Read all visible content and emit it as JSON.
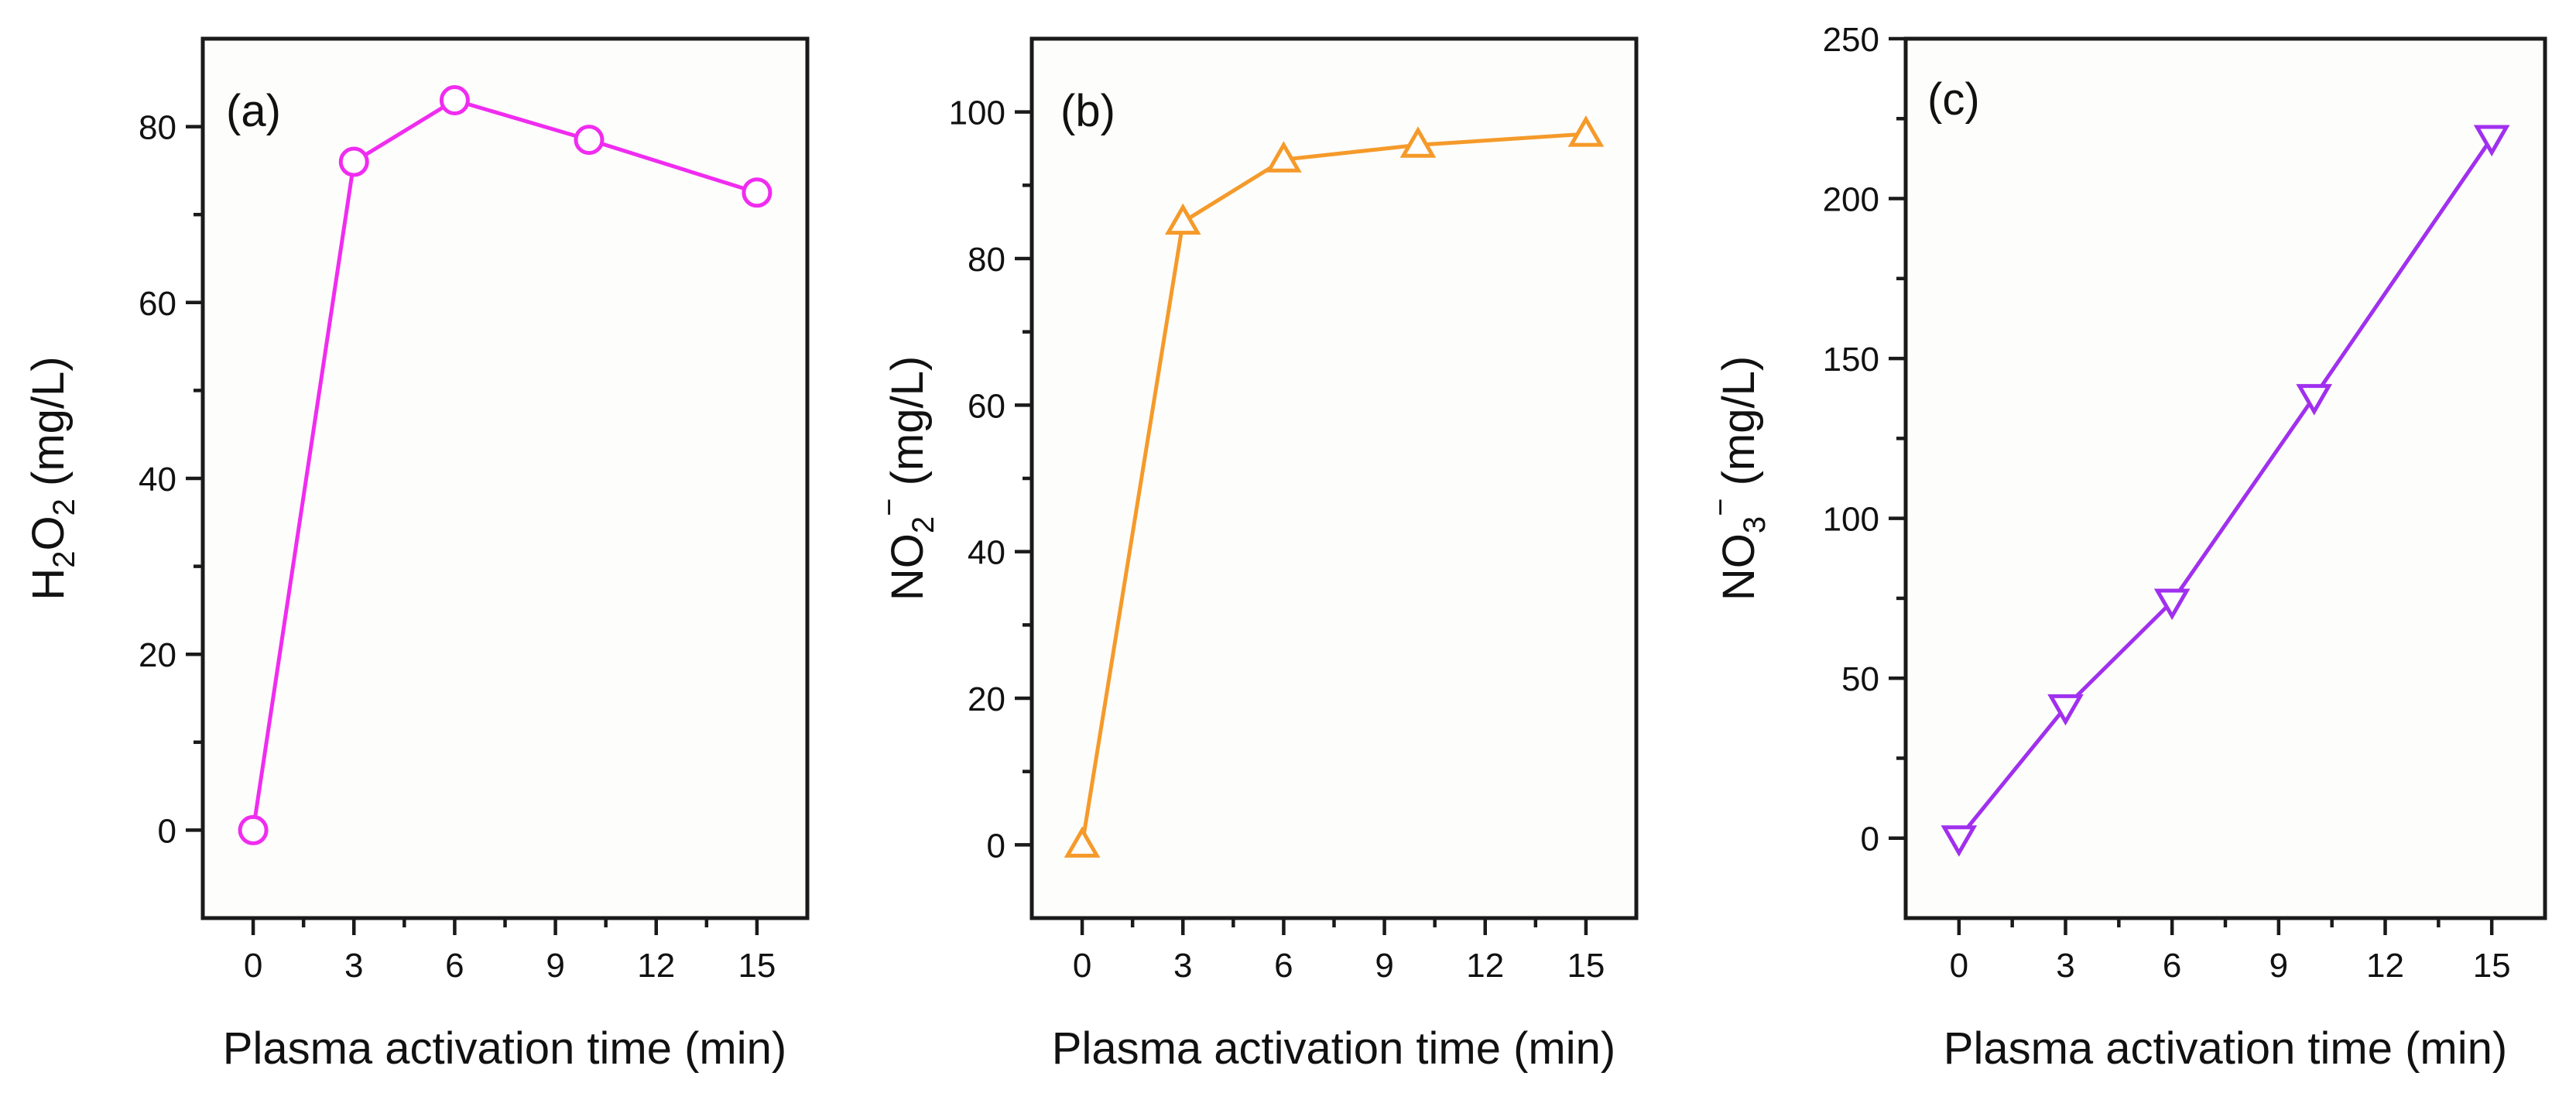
{
  "figure": {
    "panels": [
      "a",
      "b",
      "c"
    ]
  },
  "chart_data": [
    {
      "type": "line",
      "panel_label": "(a)",
      "xlabel": "Plasma activation time (min)",
      "ylabel": {
        "base": "H",
        "sub1": "2",
        "mid": "O",
        "sub2": "2",
        "unit": " (mg/L)"
      },
      "x": [
        0,
        3,
        6,
        10,
        15
      ],
      "values": [
        0,
        76,
        83,
        78.5,
        72.5
      ],
      "xlim": [
        -1.5,
        16.5
      ],
      "ylim": [
        -10,
        90
      ],
      "xticks": [
        0,
        3,
        6,
        9,
        12,
        15
      ],
      "xtick_labels": [
        "0",
        "3",
        "6",
        "9",
        "12",
        "15"
      ],
      "yticks": [
        0,
        20,
        40,
        60,
        80
      ],
      "ytick_labels": [
        "0",
        "20",
        "40",
        "60",
        "80"
      ],
      "marker": "circle",
      "color": "#f02cf0"
    },
    {
      "type": "line",
      "panel_label": "(b)",
      "xlabel": "Plasma activation time (min)",
      "ylabel": {
        "base": "NO",
        "sub": "2",
        "sup": "−",
        "unit": " (mg/L)"
      },
      "x": [
        0,
        3,
        6,
        10,
        15
      ],
      "values": [
        0,
        85,
        93.5,
        95.5,
        97
      ],
      "xlim": [
        -1.5,
        16.5
      ],
      "ylim": [
        -10,
        110
      ],
      "xticks": [
        0,
        3,
        6,
        9,
        12,
        15
      ],
      "xtick_labels": [
        "0",
        "3",
        "6",
        "9",
        "12",
        "15"
      ],
      "yticks": [
        0,
        20,
        40,
        60,
        80,
        100
      ],
      "ytick_labels": [
        "0",
        "20",
        "40",
        "60",
        "80",
        "100"
      ],
      "marker": "triangle-up",
      "color": "#f59a2a"
    },
    {
      "type": "line",
      "panel_label": "(c)",
      "xlabel": "Plasma activation time (min)",
      "ylabel": {
        "base": "NO",
        "sub": "3",
        "sup": "−",
        "unit": " (mg/L)"
      },
      "x": [
        0,
        3,
        6,
        10,
        15
      ],
      "values": [
        0,
        41,
        74,
        138,
        219
      ],
      "xlim": [
        -1.5,
        16.5
      ],
      "ylim": [
        -25,
        250
      ],
      "xticks": [
        0,
        3,
        6,
        9,
        12,
        15
      ],
      "xtick_labels": [
        "0",
        "3",
        "6",
        "9",
        "12",
        "15"
      ],
      "yticks": [
        0,
        50,
        100,
        150,
        200,
        250
      ],
      "ytick_labels": [
        "0",
        "50",
        "100",
        "150",
        "200",
        "250"
      ],
      "marker": "triangle-down",
      "color": "#a030ee"
    }
  ]
}
